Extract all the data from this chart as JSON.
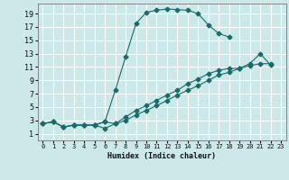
{
  "background_color": "#cce8e8",
  "grid_color": "#ffffff",
  "line_color": "#1a6b6b",
  "xlabel": "Humidex (Indice chaleur)",
  "xlim": [
    -0.5,
    23.5
  ],
  "ylim": [
    0.0,
    20.5
  ],
  "xticks": [
    0,
    1,
    2,
    3,
    4,
    5,
    6,
    7,
    8,
    9,
    10,
    11,
    12,
    13,
    14,
    15,
    16,
    17,
    18,
    19,
    20,
    21,
    22,
    23
  ],
  "yticks": [
    1,
    3,
    5,
    7,
    9,
    11,
    13,
    15,
    17,
    19
  ],
  "series1_x": [
    0,
    1,
    2,
    3,
    4,
    5,
    6,
    7,
    8,
    9,
    10,
    11,
    12,
    13,
    14,
    15,
    16,
    17,
    18
  ],
  "series1_y": [
    2.5,
    2.8,
    2.0,
    2.3,
    2.3,
    2.3,
    2.8,
    7.5,
    12.5,
    17.5,
    19.2,
    19.5,
    19.7,
    19.6,
    19.5,
    19.0,
    17.3,
    16.0,
    15.5
  ],
  "series2_x": [
    0,
    1,
    2,
    3,
    4,
    5,
    6,
    7,
    8,
    9,
    10,
    11,
    12,
    13,
    14,
    15,
    16,
    17,
    18,
    19,
    20,
    21,
    22
  ],
  "series2_y": [
    2.5,
    2.8,
    2.0,
    2.3,
    2.3,
    2.3,
    1.8,
    2.5,
    3.5,
    4.5,
    5.2,
    6.0,
    6.8,
    7.5,
    8.5,
    9.2,
    10.0,
    10.5,
    10.8,
    10.8,
    11.5,
    13.0,
    11.3
  ],
  "series3_x": [
    0,
    1,
    2,
    3,
    4,
    5,
    6,
    7,
    8,
    9,
    10,
    11,
    12,
    13,
    14,
    15,
    16,
    17,
    18,
    19,
    20,
    21,
    22
  ],
  "series3_y": [
    2.5,
    2.8,
    2.0,
    2.3,
    2.3,
    2.3,
    2.8,
    2.5,
    3.0,
    3.8,
    4.5,
    5.2,
    6.0,
    6.8,
    7.5,
    8.2,
    9.0,
    9.8,
    10.2,
    10.8,
    11.2,
    11.5,
    11.5
  ],
  "markersize": 2.5
}
